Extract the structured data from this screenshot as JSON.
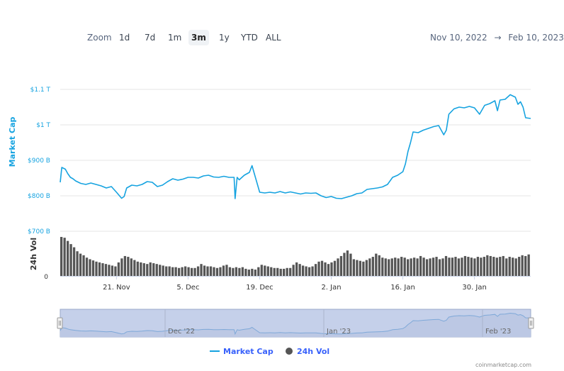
{
  "toolbar": {
    "zoom_label": "Zoom",
    "buttons": [
      "1d",
      "7d",
      "1m",
      "3m",
      "1y",
      "YTD",
      "ALL"
    ],
    "active_button": "3m",
    "date_from": "Nov 10, 2022",
    "arrow": "→",
    "date_to": "Feb 10, 2023"
  },
  "credit": "coinmarketcap.com",
  "colors": {
    "market_cap": "#16a3e0",
    "volume": "#333333",
    "navigator_fill": "#c5d0ea"
  },
  "chart_data": {
    "type": "line",
    "title": "",
    "ylabel": "Market Cap",
    "ylabel2": "24h Vol",
    "y_ticks": [
      "$700 B",
      "$800 B",
      "$900 B",
      "$1 T",
      "$1.1 T"
    ],
    "y_tick_values": [
      700,
      800,
      900,
      1000,
      1100
    ],
    "ylim": [
      700,
      1100
    ],
    "vol_ticks": [
      "0"
    ],
    "x_ticks": [
      "21. Nov",
      "5. Dec",
      "19. Dec",
      "2. Jan",
      "16. Jan",
      "30. Jan"
    ],
    "x_tick_days": [
      11,
      25,
      39,
      53,
      67,
      81
    ],
    "xlim_days": [
      0,
      92
    ],
    "date_origin": "Nov 10, 2022",
    "navigator_labels": [
      "Dec '22",
      "Jan '23",
      "Feb '23"
    ],
    "legend": [
      "Market Cap",
      "24h Vol"
    ],
    "legend_position": "bottom-center",
    "series": [
      {
        "name": "Market Cap",
        "unit": "$B",
        "points": [
          [
            0,
            838
          ],
          [
            0.3,
            880
          ],
          [
            1,
            875
          ],
          [
            1.5,
            862
          ],
          [
            2,
            852
          ],
          [
            2.5,
            848
          ],
          [
            3,
            842
          ],
          [
            4,
            835
          ],
          [
            5,
            832
          ],
          [
            6,
            836
          ],
          [
            7,
            832
          ],
          [
            8,
            828
          ],
          [
            9,
            822
          ],
          [
            10,
            826
          ],
          [
            11,
            810
          ],
          [
            12,
            793
          ],
          [
            12.5,
            798
          ],
          [
            13,
            822
          ],
          [
            14,
            830
          ],
          [
            15,
            828
          ],
          [
            16,
            832
          ],
          [
            17,
            840
          ],
          [
            18,
            838
          ],
          [
            19,
            826
          ],
          [
            20,
            830
          ],
          [
            21,
            840
          ],
          [
            22,
            848
          ],
          [
            23,
            844
          ],
          [
            24,
            847
          ],
          [
            25,
            852
          ],
          [
            26,
            852
          ],
          [
            27,
            850
          ],
          [
            28,
            856
          ],
          [
            29,
            858
          ],
          [
            30,
            853
          ],
          [
            31,
            852
          ],
          [
            32,
            855
          ],
          [
            33,
            852
          ],
          [
            34,
            852
          ],
          [
            34.2,
            792
          ],
          [
            34.6,
            852
          ],
          [
            35,
            845
          ],
          [
            36,
            858
          ],
          [
            37,
            866
          ],
          [
            37.5,
            885
          ],
          [
            38,
            860
          ],
          [
            39,
            810
          ],
          [
            40,
            808
          ],
          [
            41,
            810
          ],
          [
            42,
            808
          ],
          [
            43,
            812
          ],
          [
            44,
            808
          ],
          [
            45,
            811
          ],
          [
            46,
            808
          ],
          [
            47,
            805
          ],
          [
            48,
            808
          ],
          [
            49,
            807
          ],
          [
            50,
            808
          ],
          [
            51,
            800
          ],
          [
            52,
            795
          ],
          [
            53,
            798
          ],
          [
            54,
            793
          ],
          [
            55,
            792
          ],
          [
            56,
            796
          ],
          [
            57,
            800
          ],
          [
            58,
            806
          ],
          [
            59,
            808
          ],
          [
            60,
            818
          ],
          [
            61,
            820
          ],
          [
            62,
            822
          ],
          [
            63,
            825
          ],
          [
            64,
            832
          ],
          [
            65,
            852
          ],
          [
            66,
            858
          ],
          [
            67,
            868
          ],
          [
            67.5,
            890
          ],
          [
            68,
            925
          ],
          [
            68.5,
            950
          ],
          [
            69,
            980
          ],
          [
            70,
            978
          ],
          [
            71,
            985
          ],
          [
            72,
            990
          ],
          [
            73,
            995
          ],
          [
            74,
            998
          ],
          [
            75,
            972
          ],
          [
            75.5,
            985
          ],
          [
            76,
            1030
          ],
          [
            77,
            1045
          ],
          [
            78,
            1050
          ],
          [
            79,
            1048
          ],
          [
            80,
            1052
          ],
          [
            81,
            1048
          ],
          [
            82,
            1030
          ],
          [
            83,
            1055
          ],
          [
            84,
            1060
          ],
          [
            85,
            1068
          ],
          [
            85.5,
            1040
          ],
          [
            86,
            1070
          ],
          [
            87,
            1072
          ],
          [
            88,
            1085
          ],
          [
            89,
            1078
          ],
          [
            89.5,
            1058
          ],
          [
            90,
            1065
          ],
          [
            90.5,
            1050
          ],
          [
            91,
            1020
          ],
          [
            92,
            1018
          ]
        ]
      },
      {
        "name": "24h Vol",
        "unit": "$B",
        "values": [
          98,
          96,
          88,
          80,
          72,
          62,
          56,
          52,
          46,
          42,
          39,
          36,
          34,
          32,
          30,
          28,
          26,
          24,
          34,
          44,
          50,
          48,
          44,
          40,
          36,
          34,
          32,
          30,
          34,
          32,
          30,
          28,
          26,
          24,
          24,
          22,
          22,
          20,
          22,
          24,
          22,
          20,
          20,
          24,
          30,
          26,
          24,
          24,
          22,
          20,
          22,
          26,
          28,
          22,
          20,
          22,
          20,
          22,
          18,
          16,
          18,
          16,
          22,
          28,
          26,
          24,
          22,
          20,
          20,
          18,
          18,
          20,
          20,
          28,
          34,
          30,
          26,
          24,
          22,
          24,
          30,
          36,
          38,
          34,
          30,
          34,
          38,
          44,
          50,
          58,
          64,
          56,
          42,
          40,
          38,
          36,
          40,
          44,
          48,
          56,
          52,
          46,
          44,
          42,
          44,
          46,
          44,
          48,
          46,
          42,
          44,
          46,
          44,
          50,
          46,
          42,
          44,
          46,
          48,
          42,
          44,
          50,
          46,
          46,
          48,
          44,
          46,
          50,
          48,
          46,
          44,
          48,
          46,
          48,
          52,
          50,
          48,
          46,
          48,
          50,
          44,
          48,
          46,
          44,
          48,
          52,
          50,
          54
        ]
      }
    ]
  }
}
